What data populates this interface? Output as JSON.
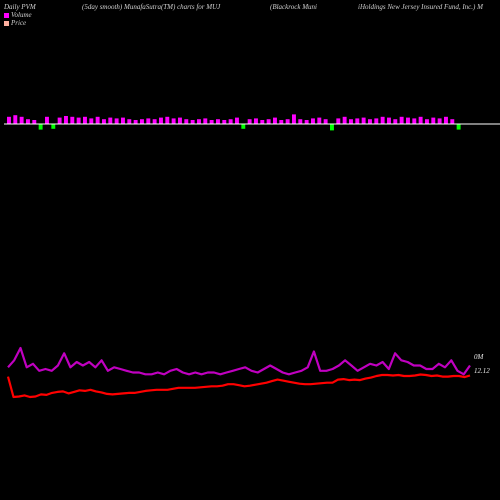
{
  "header": {
    "left": "Daily PVM",
    "mid1": "(5day smooth) MunafaSutra(TM) charts for MUJ",
    "mid2": "(Blackrock Muni",
    "right": "iHoldings New Jersey Insured Fund, Inc.) M"
  },
  "colors": {
    "background": "#000000",
    "volume_up": "#ff00ff",
    "volume_down": "#00ff00",
    "volume_axis": "#ffffff",
    "smooth_line": "#c000c0",
    "price_line": "#ff0000",
    "text": "#d0d0d0"
  },
  "chart_data": {
    "type": "line",
    "series": [
      {
        "name": "Volume",
        "kind": "volume-bars",
        "values": [
          0.9,
          1.1,
          0.9,
          0.6,
          0.5,
          -0.7,
          0.9,
          -0.6,
          0.8,
          1.0,
          0.9,
          0.8,
          0.9,
          0.7,
          0.9,
          0.6,
          0.8,
          0.7,
          0.8,
          0.6,
          0.5,
          0.6,
          0.7,
          0.6,
          0.8,
          0.9,
          0.7,
          0.8,
          0.6,
          0.5,
          0.6,
          0.7,
          0.5,
          0.6,
          0.5,
          0.6,
          0.8,
          -0.6,
          0.6,
          0.7,
          0.5,
          0.6,
          0.8,
          0.5,
          0.6,
          1.2,
          0.6,
          0.5,
          0.7,
          0.8,
          0.6,
          -0.8,
          0.7,
          0.9,
          0.6,
          0.7,
          0.8,
          0.6,
          0.7,
          0.9,
          0.8,
          0.6,
          0.9,
          0.8,
          0.7,
          0.9,
          0.6,
          0.8,
          0.7,
          0.9,
          0.6,
          -0.7
        ]
      },
      {
        "name": "",
        "kind": "smoothed-volume-line",
        "values": [
          0.45,
          0.65,
          1.0,
          0.45,
          0.55,
          0.35,
          0.4,
          0.35,
          0.5,
          0.85,
          0.45,
          0.6,
          0.5,
          0.6,
          0.45,
          0.65,
          0.35,
          0.45,
          0.4,
          0.35,
          0.3,
          0.3,
          0.25,
          0.25,
          0.3,
          0.25,
          0.35,
          0.4,
          0.3,
          0.25,
          0.3,
          0.25,
          0.3,
          0.3,
          0.25,
          0.3,
          0.35,
          0.4,
          0.45,
          0.35,
          0.3,
          0.4,
          0.5,
          0.4,
          0.3,
          0.25,
          0.3,
          0.35,
          0.45,
          0.9,
          0.35,
          0.35,
          0.4,
          0.5,
          0.65,
          0.5,
          0.35,
          0.45,
          0.55,
          0.5,
          0.6,
          0.4,
          0.85,
          0.65,
          0.6,
          0.5,
          0.5,
          0.4,
          0.4,
          0.55,
          0.45,
          0.65,
          0.35,
          0.25,
          0.5
        ]
      },
      {
        "name": "Price",
        "kind": "price-line",
        "values": [
          12.12,
          11.72,
          11.73,
          11.75,
          11.72,
          11.73,
          11.77,
          11.76,
          11.8,
          11.82,
          11.83,
          11.79,
          11.82,
          11.85,
          11.84,
          11.86,
          11.83,
          11.81,
          11.78,
          11.77,
          11.78,
          11.79,
          11.8,
          11.8,
          11.82,
          11.84,
          11.85,
          11.86,
          11.86,
          11.86,
          11.88,
          11.9,
          11.9,
          11.9,
          11.9,
          11.91,
          11.92,
          11.93,
          11.93,
          11.94,
          11.97,
          11.97,
          11.95,
          11.93,
          11.94,
          11.96,
          11.98,
          12.0,
          12.03,
          12.06,
          12.04,
          12.02,
          12.0,
          11.98,
          11.97,
          11.97,
          11.98,
          11.99,
          12.0,
          12.0,
          12.06,
          12.07,
          12.05,
          12.06,
          12.05,
          12.08,
          12.1,
          12.13,
          12.15,
          12.15,
          12.14,
          12.15,
          12.13,
          12.13,
          12.14,
          12.16,
          12.15,
          12.13,
          12.14,
          12.12,
          12.12,
          12.13,
          12.13,
          12.11,
          12.14
        ]
      }
    ],
    "legend_placement": "top-left",
    "grid": false
  },
  "legend": {
    "volume": "Volume",
    "price": "Price"
  },
  "labels": {
    "volume_level": "0M",
    "price_level": "12.12"
  }
}
